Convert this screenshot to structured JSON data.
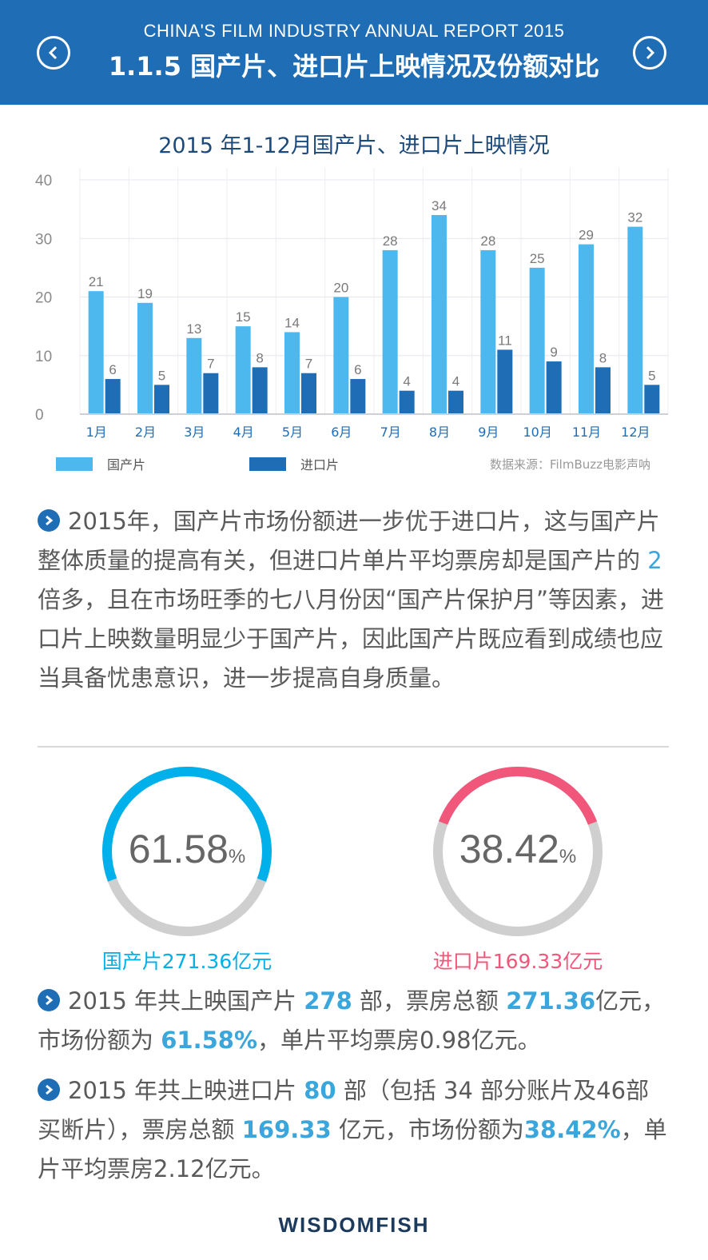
{
  "header": {
    "subtitle": "CHINA'S FILM INDUSTRY ANNUAL REPORT 2015",
    "title": "1.1.5  国产片、进口片上映情况及份额对比"
  },
  "chart_data": {
    "type": "bar",
    "title": "2015 年1-12月国产片、进口片上映情况",
    "categories": [
      "1月",
      "2月",
      "3月",
      "4月",
      "5月",
      "6月",
      "7月",
      "8月",
      "9月",
      "10月",
      "11月",
      "12月"
    ],
    "series": [
      {
        "name": "国产片",
        "values": [
          21,
          19,
          13,
          15,
          14,
          20,
          28,
          34,
          28,
          25,
          29,
          32
        ],
        "color": "#4db8ee"
      },
      {
        "name": "进口片",
        "values": [
          6,
          5,
          7,
          8,
          7,
          6,
          4,
          4,
          11,
          9,
          8,
          5
        ],
        "color": "#1f6db5"
      }
    ],
    "ylim": [
      0,
      40
    ],
    "yticks": [
      0,
      10,
      20,
      30,
      40
    ],
    "grid": true,
    "legend_position": "bottom-left",
    "source": "数据来源：FilmBuzz电影声呐"
  },
  "paragraph1": {
    "before": "2015年，国产片市场份额进一步优于进口片，这与国产片整体质量的提高有关，但进口片单片平均票房却是国产片的 ",
    "highlight": "2",
    "after": " 倍多，且在市场旺季的七八月份因“国产片保护月”等因素，进口片上映数量明显少于国产片，因此国产片既应看到成绩也应当具备忧患意识，进一步提高自身质量。"
  },
  "share": {
    "domestic": {
      "value": "61.58",
      "unit": "%",
      "fraction": 0.6158,
      "caption": "国产片271.36亿元",
      "color": "#00b0ea"
    },
    "imported": {
      "value": "38.42",
      "unit": "%",
      "fraction": 0.3842,
      "caption": "进口片169.33亿元",
      "color": "#f0577a"
    },
    "track_color": "#cfcfcf"
  },
  "paragraph2": {
    "t1": "2015 年共上映国产片 ",
    "n1": "278",
    "t2": " 部，票房总额 ",
    "n2": "271.36",
    "t3": "亿元，市场份额为 ",
    "n3": "61.58%",
    "t4": "，单片平均票房0.98亿元。"
  },
  "paragraph3": {
    "t1": "2015 年共上映进口片 ",
    "n1": "80",
    "t2": " 部（包括 34 部分账片及46部买断片），票房总额 ",
    "n2": "169.33",
    "t3": " 亿元，市场份额为",
    "n3": "38.42%",
    "t4": "，单片平均票房2.12亿元。"
  },
  "logo": "WISDOMFISH"
}
